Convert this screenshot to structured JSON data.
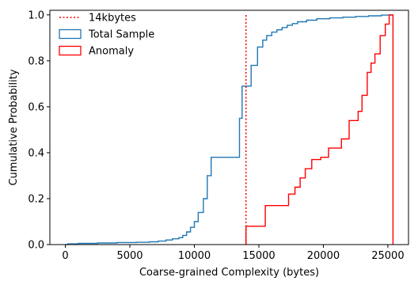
{
  "chart_data": {
    "type": "line",
    "subtype": "step-ecdf",
    "xlabel": "Coarse-grained Complexity (bytes)",
    "ylabel": "Cumulative Probability",
    "xlim": [
      -1200,
      26600
    ],
    "ylim": [
      0,
      1.02
    ],
    "xticks": [
      0,
      5000,
      10000,
      15000,
      20000,
      25000
    ],
    "yticks": [
      0.0,
      0.2,
      0.4,
      0.6,
      0.8,
      1.0
    ],
    "xtick_labels": [
      "0",
      "5000",
      "10000",
      "15000",
      "20000",
      "25000"
    ],
    "ytick_labels": [
      "0.0",
      "0.2",
      "0.4",
      "0.6",
      "0.8",
      "1.0"
    ],
    "grid": false,
    "legend_position": "top-left",
    "threshold": {
      "name": "14kbytes",
      "x": 14000,
      "color": "#ff0000",
      "style": "dotted"
    },
    "series": [
      {
        "name": "Total Sample",
        "color": "#1f77b4",
        "points": [
          [
            0,
            0.0
          ],
          [
            200,
            0.003
          ],
          [
            1000,
            0.005
          ],
          [
            2500,
            0.007
          ],
          [
            4000,
            0.009
          ],
          [
            5500,
            0.01
          ],
          [
            6500,
            0.012
          ],
          [
            7200,
            0.015
          ],
          [
            7800,
            0.02
          ],
          [
            8300,
            0.025
          ],
          [
            8800,
            0.03
          ],
          [
            9100,
            0.04
          ],
          [
            9400,
            0.055
          ],
          [
            9700,
            0.075
          ],
          [
            10000,
            0.1
          ],
          [
            10300,
            0.14
          ],
          [
            10700,
            0.2
          ],
          [
            11000,
            0.3
          ],
          [
            11300,
            0.38
          ],
          [
            12400,
            0.38
          ],
          [
            13500,
            0.55
          ],
          [
            13700,
            0.69
          ],
          [
            13800,
            0.69
          ],
          [
            14000,
            0.69
          ],
          [
            14200,
            0.69
          ],
          [
            14400,
            0.78
          ],
          [
            14900,
            0.86
          ],
          [
            15300,
            0.89
          ],
          [
            15600,
            0.91
          ],
          [
            16000,
            0.925
          ],
          [
            16400,
            0.935
          ],
          [
            16800,
            0.945
          ],
          [
            17200,
            0.955
          ],
          [
            17600,
            0.962
          ],
          [
            18000,
            0.97
          ],
          [
            18700,
            0.977
          ],
          [
            19500,
            0.983
          ],
          [
            20500,
            0.987
          ],
          [
            21500,
            0.99
          ],
          [
            22500,
            0.993
          ],
          [
            23500,
            0.996
          ],
          [
            24500,
            0.999
          ],
          [
            25300,
            1.0
          ]
        ]
      },
      {
        "name": "Anomaly",
        "color": "#ff0000",
        "points": [
          [
            14000,
            0.0
          ],
          [
            14000,
            0.08
          ],
          [
            15500,
            0.17
          ],
          [
            17300,
            0.22
          ],
          [
            17800,
            0.25
          ],
          [
            18200,
            0.29
          ],
          [
            18600,
            0.33
          ],
          [
            19100,
            0.37
          ],
          [
            19800,
            0.38
          ],
          [
            20400,
            0.42
          ],
          [
            21400,
            0.46
          ],
          [
            22000,
            0.54
          ],
          [
            22700,
            0.58
          ],
          [
            23000,
            0.65
          ],
          [
            23400,
            0.75
          ],
          [
            23700,
            0.79
          ],
          [
            24000,
            0.83
          ],
          [
            24400,
            0.91
          ],
          [
            24800,
            0.96
          ],
          [
            25100,
            1.0
          ],
          [
            25400,
            1.0
          ],
          [
            25400,
            0.0
          ]
        ]
      }
    ]
  }
}
